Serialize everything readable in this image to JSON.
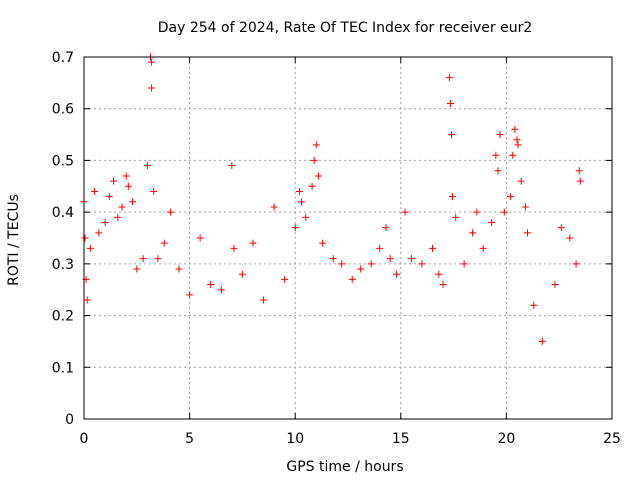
{
  "chart_data": {
    "type": "scatter",
    "title": "Day 254 of 2024, Rate Of TEC Index for receiver eur2",
    "xlabel": "GPS time / hours",
    "ylabel": "ROTI / TECUs",
    "xlim": [
      0,
      25
    ],
    "ylim": [
      0,
      0.7
    ],
    "xticks": [
      "0",
      "5",
      "10",
      "15",
      "20",
      "25"
    ],
    "yticks": [
      "0",
      "0.1",
      "0.2",
      "0.3",
      "0.4",
      "0.5",
      "0.6",
      "0.7"
    ],
    "grid": true,
    "marker": "+",
    "color": "#ff0000",
    "series": [
      {
        "points": [
          [
            0.0,
            0.42
          ],
          [
            0.05,
            0.35
          ],
          [
            0.1,
            0.27
          ],
          [
            0.15,
            0.23
          ],
          [
            0.3,
            0.33
          ],
          [
            0.5,
            0.44
          ],
          [
            0.7,
            0.36
          ],
          [
            1.0,
            0.38
          ],
          [
            1.2,
            0.43
          ],
          [
            1.4,
            0.46
          ],
          [
            1.6,
            0.39
          ],
          [
            1.8,
            0.41
          ],
          [
            2.0,
            0.47
          ],
          [
            2.1,
            0.45
          ],
          [
            2.3,
            0.42
          ],
          [
            2.5,
            0.29
          ],
          [
            2.8,
            0.31
          ],
          [
            3.0,
            0.49
          ],
          [
            3.15,
            0.7
          ],
          [
            3.2,
            0.69
          ],
          [
            3.2,
            0.64
          ],
          [
            3.3,
            0.44
          ],
          [
            3.5,
            0.31
          ],
          [
            3.8,
            0.34
          ],
          [
            4.1,
            0.4
          ],
          [
            4.5,
            0.29
          ],
          [
            5.0,
            0.24
          ],
          [
            5.5,
            0.35
          ],
          [
            6.0,
            0.26
          ],
          [
            6.5,
            0.25
          ],
          [
            7.0,
            0.49
          ],
          [
            7.1,
            0.33
          ],
          [
            7.5,
            0.28
          ],
          [
            8.0,
            0.34
          ],
          [
            8.5,
            0.23
          ],
          [
            9.0,
            0.41
          ],
          [
            9.5,
            0.27
          ],
          [
            10.0,
            0.37
          ],
          [
            10.2,
            0.44
          ],
          [
            10.3,
            0.42
          ],
          [
            10.5,
            0.39
          ],
          [
            10.8,
            0.45
          ],
          [
            10.9,
            0.5
          ],
          [
            11.0,
            0.53
          ],
          [
            11.1,
            0.47
          ],
          [
            11.3,
            0.34
          ],
          [
            11.8,
            0.31
          ],
          [
            12.2,
            0.3
          ],
          [
            12.7,
            0.27
          ],
          [
            13.1,
            0.29
          ],
          [
            13.6,
            0.3
          ],
          [
            14.0,
            0.33
          ],
          [
            14.3,
            0.37
          ],
          [
            14.5,
            0.31
          ],
          [
            14.8,
            0.28
          ],
          [
            15.2,
            0.4
          ],
          [
            15.5,
            0.31
          ],
          [
            16.0,
            0.3
          ],
          [
            16.5,
            0.33
          ],
          [
            16.8,
            0.28
          ],
          [
            17.0,
            0.26
          ],
          [
            17.3,
            0.66
          ],
          [
            17.35,
            0.61
          ],
          [
            17.4,
            0.55
          ],
          [
            17.45,
            0.43
          ],
          [
            17.6,
            0.39
          ],
          [
            18.0,
            0.3
          ],
          [
            18.4,
            0.36
          ],
          [
            18.6,
            0.4
          ],
          [
            18.9,
            0.33
          ],
          [
            19.3,
            0.38
          ],
          [
            19.5,
            0.51
          ],
          [
            19.6,
            0.48
          ],
          [
            19.7,
            0.55
          ],
          [
            19.9,
            0.4
          ],
          [
            20.2,
            0.43
          ],
          [
            20.3,
            0.51
          ],
          [
            20.4,
            0.56
          ],
          [
            20.5,
            0.54
          ],
          [
            20.55,
            0.53
          ],
          [
            20.7,
            0.46
          ],
          [
            20.9,
            0.41
          ],
          [
            21.0,
            0.36
          ],
          [
            21.3,
            0.22
          ],
          [
            21.7,
            0.15
          ],
          [
            22.3,
            0.26
          ],
          [
            22.6,
            0.37
          ],
          [
            23.0,
            0.35
          ],
          [
            23.3,
            0.3
          ],
          [
            23.45,
            0.48
          ],
          [
            23.5,
            0.46
          ]
        ]
      }
    ]
  }
}
